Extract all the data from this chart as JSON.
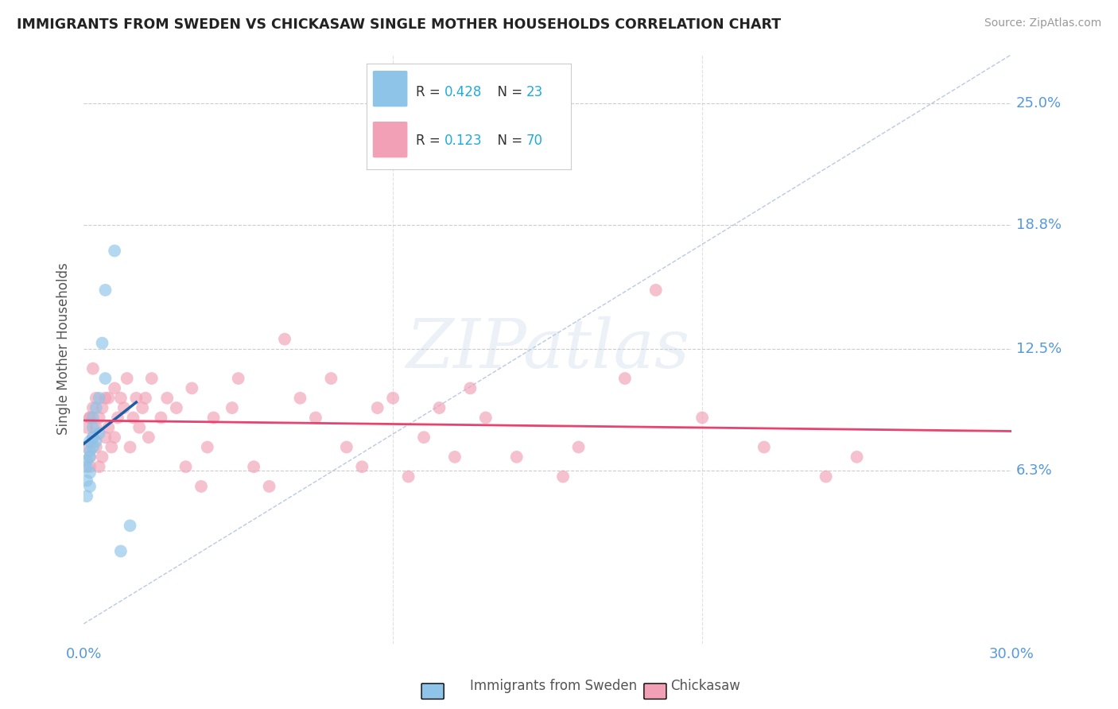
{
  "title": "IMMIGRANTS FROM SWEDEN VS CHICKASAW SINGLE MOTHER HOUSEHOLDS CORRELATION CHART",
  "source": "Source: ZipAtlas.com",
  "ylabel": "Single Mother Households",
  "ylabel_ticks": [
    "6.3%",
    "12.5%",
    "18.8%",
    "25.0%"
  ],
  "ylabel_tick_vals": [
    0.063,
    0.125,
    0.188,
    0.25
  ],
  "xmin": 0.0,
  "xmax": 0.3,
  "ymin": -0.025,
  "ymax": 0.275,
  "legend1_R": "0.428",
  "legend1_N": "23",
  "legend2_R": "0.123",
  "legend2_N": "70",
  "color_sweden": "#8DC4E8",
  "color_chickasaw": "#F2A0B5",
  "color_line_sweden": "#1A5EA8",
  "color_line_chickasaw": "#E8436E",
  "color_dashed": "#AABBDD",
  "sweden_x": [
    0.001,
    0.001,
    0.001,
    0.001,
    0.002,
    0.002,
    0.002,
    0.002,
    0.002,
    0.003,
    0.003,
    0.003,
    0.003,
    0.004,
    0.004,
    0.005,
    0.005,
    0.006,
    0.007,
    0.007,
    0.01,
    0.012,
    0.015
  ],
  "sweden_y": [
    0.05,
    0.058,
    0.065,
    0.068,
    0.055,
    0.062,
    0.07,
    0.073,
    0.078,
    0.075,
    0.08,
    0.085,
    0.09,
    0.078,
    0.095,
    0.082,
    0.1,
    0.128,
    0.11,
    0.155,
    0.175,
    0.022,
    0.035
  ],
  "chickasaw_x": [
    0.001,
    0.001,
    0.002,
    0.002,
    0.002,
    0.003,
    0.003,
    0.004,
    0.004,
    0.004,
    0.005,
    0.005,
    0.006,
    0.006,
    0.007,
    0.007,
    0.008,
    0.009,
    0.01,
    0.01,
    0.011,
    0.012,
    0.013,
    0.014,
    0.015,
    0.016,
    0.017,
    0.018,
    0.019,
    0.02,
    0.021,
    0.022,
    0.025,
    0.027,
    0.03,
    0.033,
    0.035,
    0.038,
    0.04,
    0.042,
    0.048,
    0.05,
    0.055,
    0.06,
    0.065,
    0.07,
    0.075,
    0.08,
    0.085,
    0.09,
    0.095,
    0.1,
    0.105,
    0.11,
    0.115,
    0.12,
    0.125,
    0.13,
    0.14,
    0.155,
    0.16,
    0.175,
    0.185,
    0.2,
    0.22,
    0.24,
    0.25,
    0.002,
    0.003,
    0.008
  ],
  "chickasaw_y": [
    0.075,
    0.085,
    0.065,
    0.07,
    0.09,
    0.08,
    0.095,
    0.075,
    0.085,
    0.1,
    0.065,
    0.09,
    0.07,
    0.095,
    0.08,
    0.1,
    0.085,
    0.075,
    0.105,
    0.08,
    0.09,
    0.1,
    0.095,
    0.11,
    0.075,
    0.09,
    0.1,
    0.085,
    0.095,
    0.1,
    0.08,
    0.11,
    0.09,
    0.1,
    0.095,
    0.065,
    0.105,
    0.055,
    0.075,
    0.09,
    0.095,
    0.11,
    0.065,
    0.055,
    0.13,
    0.1,
    0.09,
    0.11,
    0.075,
    0.065,
    0.095,
    0.1,
    0.06,
    0.08,
    0.095,
    0.07,
    0.105,
    0.09,
    0.07,
    0.06,
    0.075,
    0.11,
    0.155,
    0.09,
    0.075,
    0.06,
    0.07,
    0.09,
    0.115,
    0.1
  ]
}
